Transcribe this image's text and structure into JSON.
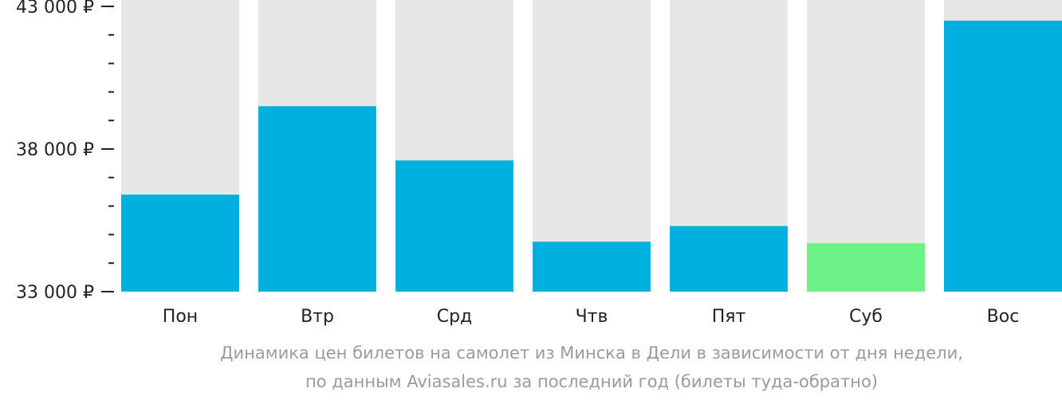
{
  "chart_data": {
    "type": "bar",
    "categories": [
      "Пон",
      "Втр",
      "Срд",
      "Чтв",
      "Пят",
      "Суб",
      "Вос"
    ],
    "values": [
      36400,
      39500,
      37600,
      34750,
      35300,
      34700,
      42500
    ],
    "ylim": [
      33000,
      43000
    ],
    "yticks": [
      {
        "value": 43000,
        "label": "43 000 ₽"
      },
      {
        "value": 38000,
        "label": "38 000 ₽"
      },
      {
        "value": 33000,
        "label": "33 000 ₽"
      }
    ],
    "minor_tick_step": 1000,
    "highlight_index": 5,
    "grid": false,
    "colors": {
      "bar": "#00b0dc",
      "highlight": "#6ef184",
      "bar_background": "#e7e7e7",
      "axis": "#222222"
    }
  },
  "caption": {
    "line1": "Динамика цен билетов на самолет из Минска в Дели в зависимости от дня недели,",
    "line2": "по данным Aviasales.ru за последний год (билеты туда-обратно)"
  }
}
